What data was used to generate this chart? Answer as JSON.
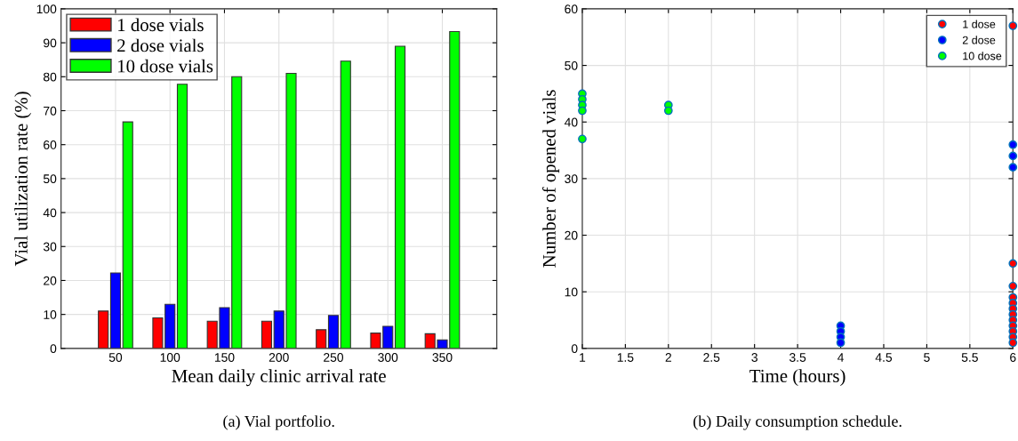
{
  "chart_data": [
    {
      "type": "bar",
      "categories": [
        "50",
        "100",
        "150",
        "200",
        "250",
        "300",
        "350"
      ],
      "xlabel": "Mean daily clinic arrival rate",
      "ylabel": "Vial utilization rate (%)",
      "ylim": [
        0,
        100
      ],
      "yticks": [
        0,
        10,
        20,
        30,
        40,
        50,
        60,
        70,
        80,
        90,
        100
      ],
      "grid": true,
      "legend": "top left",
      "annotations": [
        "(a) Vial portfolio."
      ],
      "series": [
        {
          "name": "1 dose vials",
          "color": "#ff0000",
          "values": [
            11,
            9,
            8,
            8,
            5.5,
            4.5,
            4.3
          ]
        },
        {
          "name": "2 dose vials",
          "color": "#0000ff",
          "values": [
            22.2,
            13,
            12,
            11,
            9.7,
            6.5,
            2.5
          ]
        },
        {
          "name": "10 dose vials",
          "color": "#00ff00",
          "values": [
            66.7,
            77.8,
            80,
            81,
            84.6,
            89,
            93.3
          ]
        }
      ]
    },
    {
      "type": "scatter",
      "xlabel": "Time (hours)",
      "ylabel": "Number of opened vials",
      "xlim": [
        1,
        6
      ],
      "xticks": [
        1,
        1.5,
        2,
        2.5,
        3,
        3.5,
        4,
        4.5,
        5,
        5.5,
        6
      ],
      "ylim": [
        0,
        60
      ],
      "yticks": [
        0,
        10,
        20,
        30,
        40,
        50,
        60
      ],
      "grid": true,
      "legend": "top right",
      "marker": "circle",
      "annotations": [
        "(b) Daily consumption schedule."
      ],
      "series": [
        {
          "name": "1 dose",
          "color": "#ff0000",
          "x": [
            6,
            6,
            6,
            6,
            6,
            6,
            6,
            6,
            6,
            6,
            6,
            6
          ],
          "values": [
            57,
            15,
            11,
            9,
            8,
            7,
            6,
            5,
            4,
            3,
            2,
            1
          ]
        },
        {
          "name": "2 dose",
          "color": "#0000ff",
          "x": [
            4,
            4,
            4,
            4,
            6,
            6,
            6
          ],
          "values": [
            4,
            3,
            2,
            1,
            36,
            34,
            32
          ]
        },
        {
          "name": "10 dose",
          "color": "#00ff00",
          "x": [
            1,
            1,
            1,
            1,
            1,
            2,
            2
          ],
          "values": [
            45,
            44,
            43,
            42,
            37,
            43,
            42
          ]
        }
      ]
    }
  ]
}
